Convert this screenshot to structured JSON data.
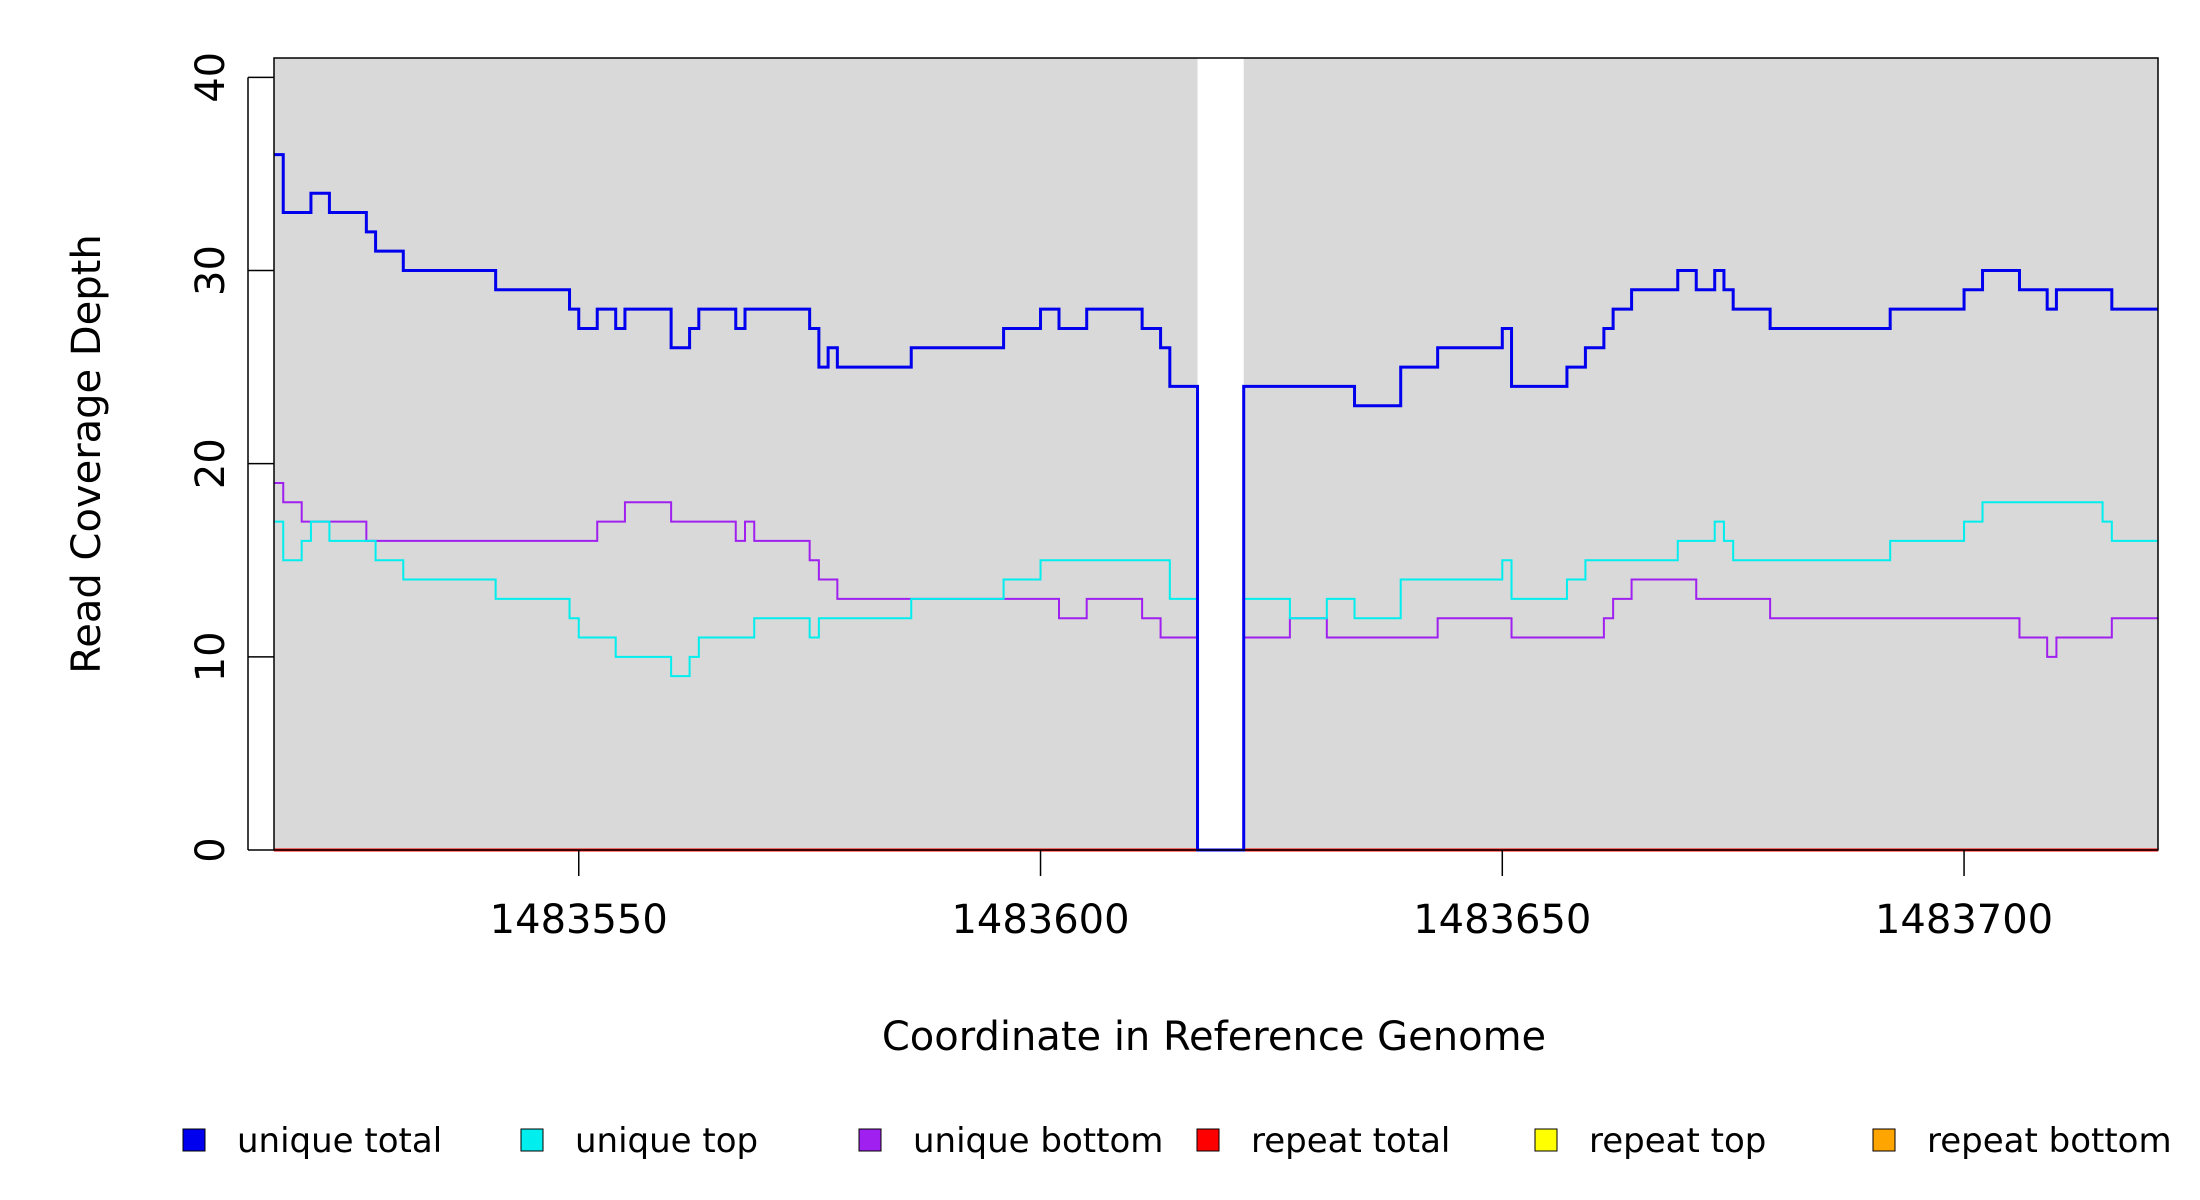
{
  "chart_data": {
    "type": "line",
    "xlabel": "Coordinate in Reference Genome",
    "ylabel": "Read Coverage Depth",
    "xlim": [
      1483517,
      1483721
    ],
    "ylim": [
      0,
      41
    ],
    "x_ticks": [
      1483550,
      1483600,
      1483650,
      1483700
    ],
    "y_ticks": [
      0,
      10,
      20,
      30,
      40
    ],
    "x_tick_labels": [
      "1483550",
      "1483600",
      "1483650",
      "1483700"
    ],
    "y_tick_labels": [
      "0",
      "10",
      "20",
      "30",
      "40"
    ],
    "gap_region": [
      1483617,
      1483622
    ],
    "background_color": "#d9d9d9",
    "legend_position": "bottom",
    "series": [
      {
        "name": "unique total",
        "color": "#0000ee",
        "points": [
          [
            1483517,
            36
          ],
          [
            1483518,
            33
          ],
          [
            1483521,
            34
          ],
          [
            1483523,
            33
          ],
          [
            1483527,
            32
          ],
          [
            1483528,
            31
          ],
          [
            1483531,
            30
          ],
          [
            1483541,
            29
          ],
          [
            1483549,
            28
          ],
          [
            1483550,
            27
          ],
          [
            1483552,
            28
          ],
          [
            1483554,
            27
          ],
          [
            1483555,
            28
          ],
          [
            1483560,
            26
          ],
          [
            1483562,
            27
          ],
          [
            1483563,
            28
          ],
          [
            1483567,
            27
          ],
          [
            1483568,
            28
          ],
          [
            1483575,
            27
          ],
          [
            1483576,
            25
          ],
          [
            1483577,
            26
          ],
          [
            1483578,
            25
          ],
          [
            1483586,
            26
          ],
          [
            1483596,
            27
          ],
          [
            1483600,
            28
          ],
          [
            1483602,
            27
          ],
          [
            1483605,
            28
          ],
          [
            1483611,
            27
          ],
          [
            1483613,
            26
          ],
          [
            1483614,
            24
          ],
          [
            1483617,
            0
          ],
          [
            1483622,
            24
          ],
          [
            1483634,
            23
          ],
          [
            1483639,
            25
          ],
          [
            1483643,
            26
          ],
          [
            1483650,
            27
          ],
          [
            1483651,
            24
          ],
          [
            1483657,
            25
          ],
          [
            1483659,
            26
          ],
          [
            1483661,
            27
          ],
          [
            1483662,
            28
          ],
          [
            1483664,
            29
          ],
          [
            1483669,
            30
          ],
          [
            1483671,
            29
          ],
          [
            1483673,
            30
          ],
          [
            1483674,
            29
          ],
          [
            1483675,
            28
          ],
          [
            1483679,
            27
          ],
          [
            1483692,
            28
          ],
          [
            1483700,
            29
          ],
          [
            1483702,
            30
          ],
          [
            1483706,
            29
          ],
          [
            1483709,
            28
          ],
          [
            1483710,
            29
          ],
          [
            1483716,
            28
          ],
          [
            1483721,
            28
          ]
        ]
      },
      {
        "name": "unique top",
        "color": "#00eeee",
        "points": [
          [
            1483517,
            17
          ],
          [
            1483518,
            15
          ],
          [
            1483520,
            16
          ],
          [
            1483521,
            17
          ],
          [
            1483523,
            16
          ],
          [
            1483528,
            15
          ],
          [
            1483531,
            14
          ],
          [
            1483541,
            13
          ],
          [
            1483549,
            12
          ],
          [
            1483550,
            11
          ],
          [
            1483554,
            10
          ],
          [
            1483560,
            9
          ],
          [
            1483562,
            10
          ],
          [
            1483563,
            11
          ],
          [
            1483569,
            12
          ],
          [
            1483575,
            11
          ],
          [
            1483576,
            12
          ],
          [
            1483586,
            13
          ],
          [
            1483596,
            14
          ],
          [
            1483600,
            15
          ],
          [
            1483614,
            13
          ],
          [
            1483617,
            0
          ],
          [
            1483622,
            13
          ],
          [
            1483627,
            12
          ],
          [
            1483631,
            13
          ],
          [
            1483634,
            12
          ],
          [
            1483639,
            14
          ],
          [
            1483650,
            15
          ],
          [
            1483651,
            13
          ],
          [
            1483657,
            14
          ],
          [
            1483659,
            15
          ],
          [
            1483669,
            16
          ],
          [
            1483673,
            17
          ],
          [
            1483674,
            16
          ],
          [
            1483675,
            15
          ],
          [
            1483692,
            16
          ],
          [
            1483700,
            17
          ],
          [
            1483702,
            18
          ],
          [
            1483715,
            17
          ],
          [
            1483716,
            16
          ],
          [
            1483721,
            16
          ]
        ]
      },
      {
        "name": "unique bottom",
        "color": "#a020f0",
        "points": [
          [
            1483517,
            19
          ],
          [
            1483518,
            18
          ],
          [
            1483520,
            17
          ],
          [
            1483527,
            16
          ],
          [
            1483552,
            17
          ],
          [
            1483555,
            18
          ],
          [
            1483560,
            17
          ],
          [
            1483567,
            16
          ],
          [
            1483568,
            17
          ],
          [
            1483569,
            16
          ],
          [
            1483575,
            15
          ],
          [
            1483576,
            14
          ],
          [
            1483578,
            13
          ],
          [
            1483596,
            13
          ],
          [
            1483602,
            12
          ],
          [
            1483605,
            13
          ],
          [
            1483611,
            12
          ],
          [
            1483613,
            11
          ],
          [
            1483617,
            0
          ],
          [
            1483622,
            11
          ],
          [
            1483627,
            12
          ],
          [
            1483631,
            11
          ],
          [
            1483643,
            12
          ],
          [
            1483651,
            11
          ],
          [
            1483661,
            12
          ],
          [
            1483662,
            13
          ],
          [
            1483664,
            14
          ],
          [
            1483671,
            13
          ],
          [
            1483679,
            12
          ],
          [
            1483706,
            11
          ],
          [
            1483709,
            10
          ],
          [
            1483710,
            11
          ],
          [
            1483716,
            12
          ],
          [
            1483721,
            12
          ]
        ]
      },
      {
        "name": "repeat total",
        "color": "#ff0000",
        "points": [
          [
            1483517,
            0
          ],
          [
            1483721,
            0
          ]
        ]
      },
      {
        "name": "repeat top",
        "color": "#ffff00",
        "points": [
          [
            1483517,
            0
          ],
          [
            1483721,
            0
          ]
        ]
      },
      {
        "name": "repeat bottom",
        "color": "#ffa500",
        "points": [
          [
            1483517,
            0
          ],
          [
            1483721,
            0
          ]
        ]
      }
    ]
  }
}
